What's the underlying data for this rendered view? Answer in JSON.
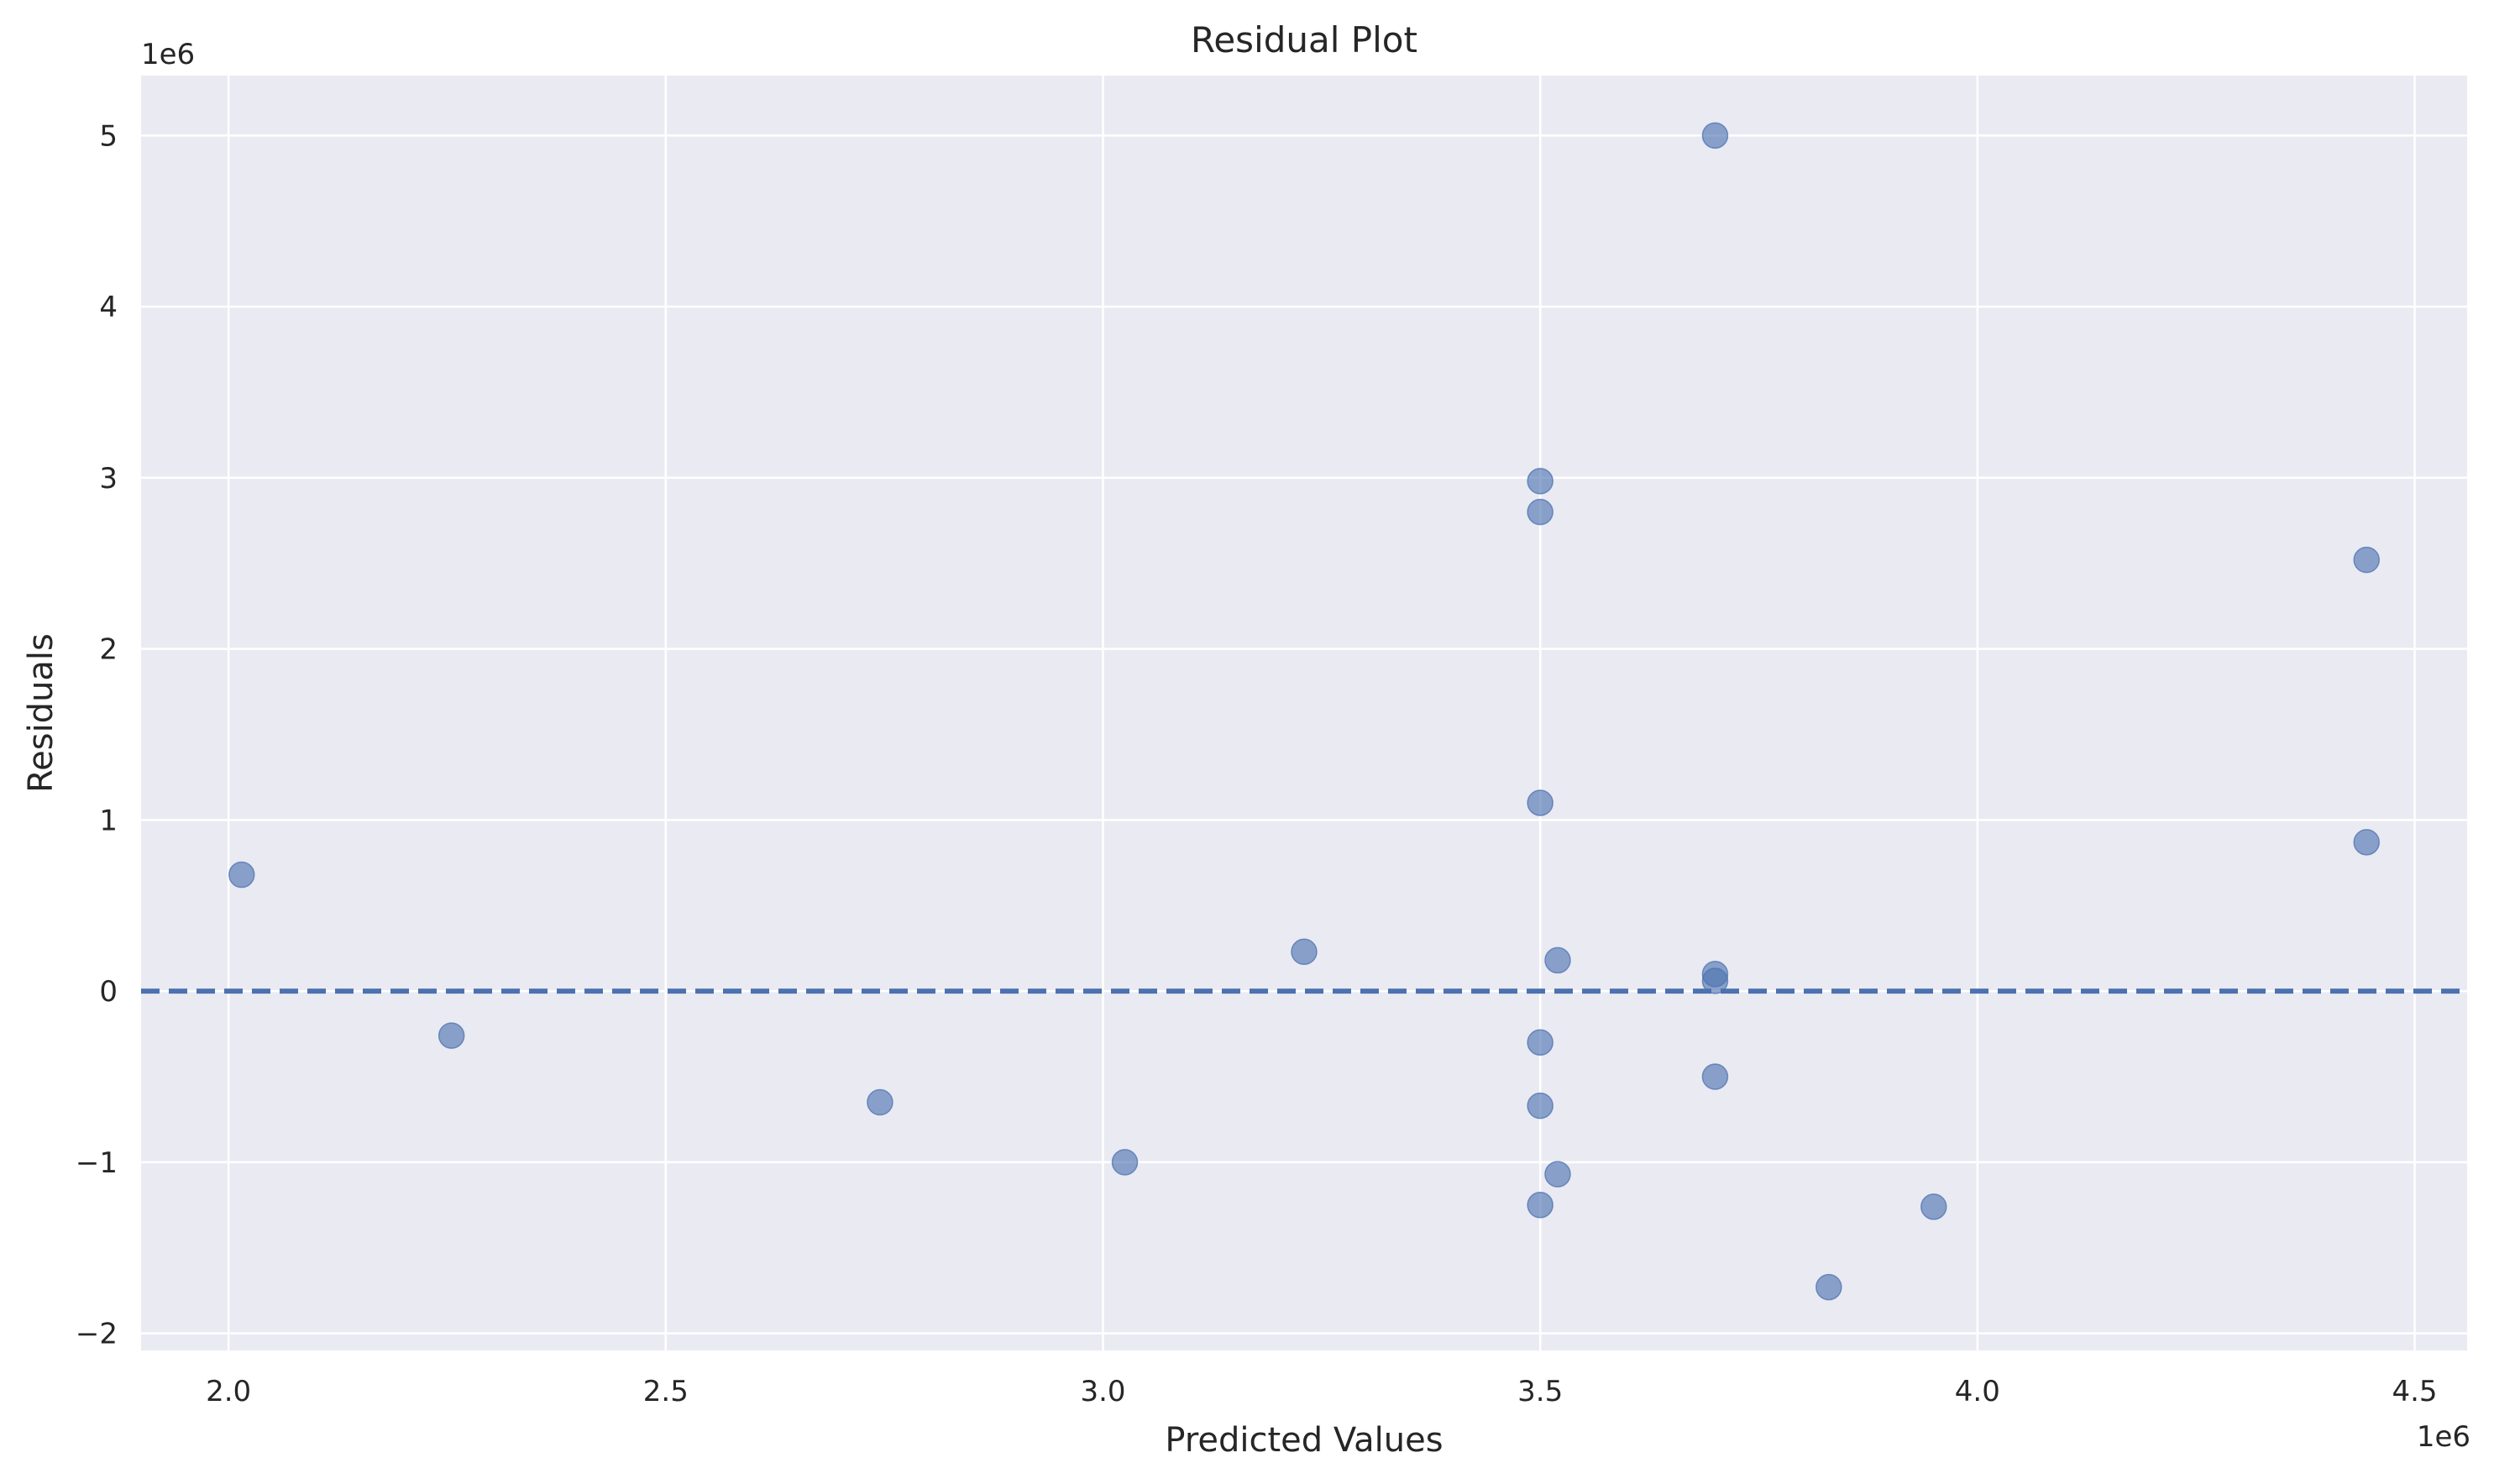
{
  "chart_data": {
    "type": "scatter",
    "title": "Residual Plot",
    "xlabel": "Predicted Values",
    "ylabel": "Residuals",
    "x_offset_label": "1e6",
    "y_offset_label": "1e6",
    "xlim": [
      1.9,
      4.56
    ],
    "ylim": [
      -2.1,
      5.35
    ],
    "x_ticks": [
      2.0,
      2.5,
      3.0,
      3.5,
      4.0,
      4.5
    ],
    "x_tick_labels": [
      "2.0",
      "2.5",
      "3.0",
      "3.5",
      "4.0",
      "4.5"
    ],
    "y_ticks": [
      -2,
      -1,
      0,
      1,
      2,
      3,
      4,
      5
    ],
    "y_tick_labels": [
      "−2",
      "−1",
      "0",
      "1",
      "2",
      "3",
      "4",
      "5"
    ],
    "grid": true,
    "reference_line": {
      "y": 0,
      "style": "dashed"
    },
    "colors": {
      "background": "#eaeaf2",
      "grid": "#ffffff",
      "points": "#4c72b0",
      "reference_line": "#4c72b0"
    },
    "series": [
      {
        "x": [
          2.015,
          2.255,
          2.745,
          3.025,
          3.23,
          3.5,
          3.5,
          3.5,
          3.5,
          3.5,
          3.5,
          3.52,
          3.52,
          3.7,
          3.7,
          3.7,
          3.7,
          3.83,
          3.95,
          4.445,
          4.445
        ],
        "y": [
          0.68,
          -0.26,
          -0.65,
          -1.0,
          0.23,
          2.98,
          2.8,
          1.1,
          -0.3,
          -0.67,
          -1.25,
          0.18,
          -1.07,
          5.0,
          0.1,
          0.06,
          -0.5,
          -1.73,
          -1.26,
          2.52,
          0.87
        ]
      }
    ]
  }
}
